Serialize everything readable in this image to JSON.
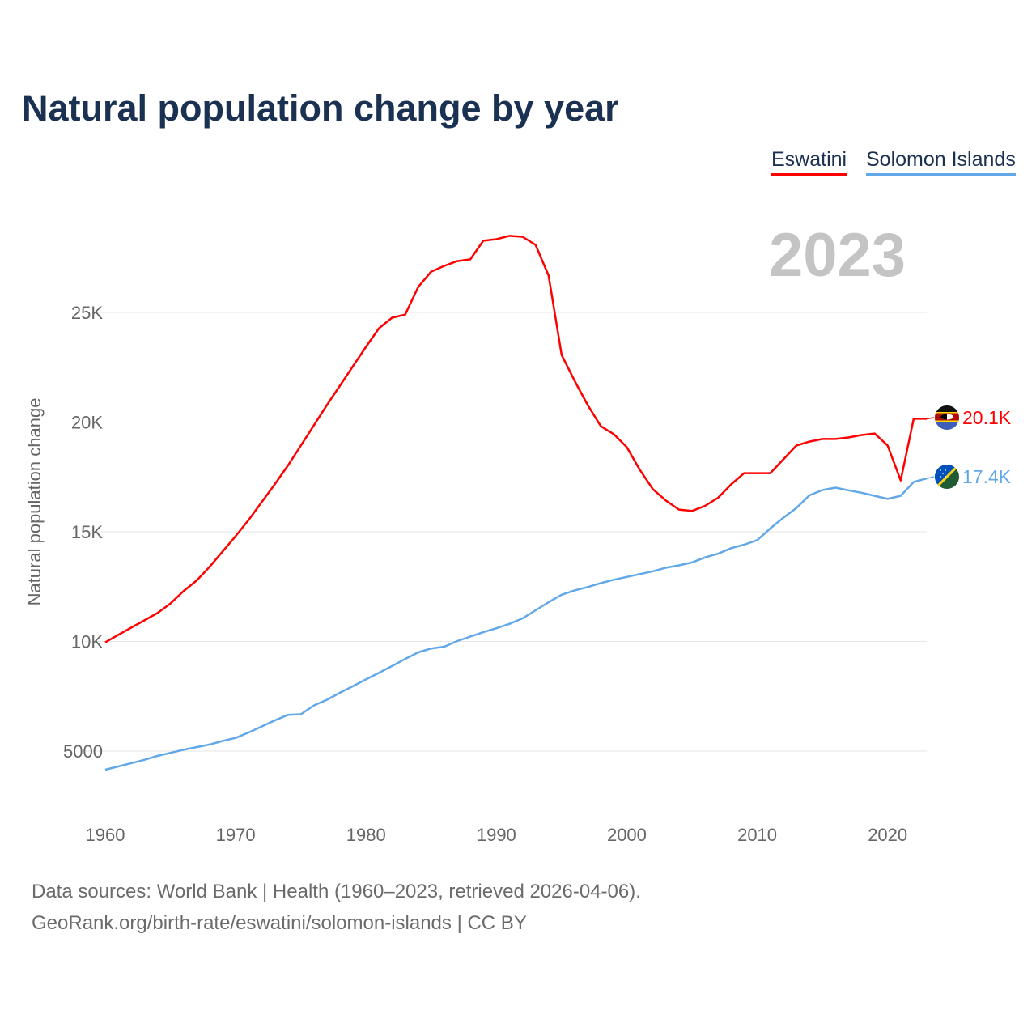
{
  "chart_data": {
    "type": "line",
    "title": "Natural population change by year",
    "ylabel": "Natural population change",
    "xlabel": "",
    "highlight_year": "2023",
    "xlim": [
      1960,
      2023
    ],
    "ylim": [
      3500,
      30000
    ],
    "x_ticks": [
      1960,
      1970,
      1980,
      1990,
      2000,
      2010,
      2020
    ],
    "x_tick_labels": [
      "1960",
      "1970",
      "1980",
      "1990",
      "2000",
      "2010",
      "2020"
    ],
    "y_ticks": [
      5000,
      10000,
      15000,
      20000,
      25000
    ],
    "y_tick_labels": [
      "5000",
      "10K",
      "15K",
      "20K",
      "25K"
    ],
    "grid": true,
    "legend_position": "top-right",
    "x": [
      1960,
      1961,
      1962,
      1963,
      1964,
      1965,
      1966,
      1967,
      1968,
      1969,
      1970,
      1971,
      1972,
      1973,
      1974,
      1975,
      1976,
      1977,
      1978,
      1979,
      1980,
      1981,
      1982,
      1983,
      1984,
      1985,
      1986,
      1987,
      1988,
      1989,
      1990,
      1991,
      1992,
      1993,
      1994,
      1995,
      1996,
      1997,
      1998,
      1999,
      2000,
      2001,
      2002,
      2003,
      2004,
      2005,
      2006,
      2007,
      2008,
      2009,
      2010,
      2011,
      2012,
      2013,
      2014,
      2015,
      2016,
      2017,
      2018,
      2019,
      2020,
      2021,
      2022,
      2023
    ],
    "series": [
      {
        "name": "Eswatini",
        "color": "#ff0000",
        "end_label": "20.1K",
        "flag": "eswatini-flag",
        "values": [
          9960,
          10300,
          10630,
          10960,
          11290,
          11730,
          12290,
          12770,
          13400,
          14100,
          14800,
          15540,
          16350,
          17160,
          18010,
          18930,
          19850,
          20780,
          21660,
          22550,
          23430,
          24280,
          24760,
          24900,
          26160,
          26860,
          27120,
          27340,
          27420,
          28270,
          28340,
          28490,
          28450,
          28080,
          26680,
          23060,
          21880,
          20780,
          19820,
          19450,
          18860,
          17820,
          16940,
          16420,
          16010,
          15950,
          16180,
          16550,
          17160,
          17670,
          17670,
          17670,
          18300,
          18930,
          19110,
          19230,
          19230,
          19300,
          19410,
          19480,
          18930,
          17340,
          20150,
          20150
        ]
      },
      {
        "name": "Solomon Islands",
        "color": "#62a8e8",
        "end_label": "17.4K",
        "flag": "solomon-islands-flag",
        "values": [
          4150,
          4300,
          4450,
          4600,
          4780,
          4920,
          5060,
          5180,
          5300,
          5460,
          5600,
          5850,
          6120,
          6400,
          6650,
          6680,
          7080,
          7340,
          7660,
          7960,
          8270,
          8570,
          8880,
          9200,
          9500,
          9680,
          9760,
          10020,
          10220,
          10420,
          10600,
          10800,
          11050,
          11420,
          11790,
          12130,
          12330,
          12480,
          12660,
          12810,
          12940,
          13070,
          13200,
          13360,
          13470,
          13600,
          13830,
          14000,
          14250,
          14410,
          14620,
          15150,
          15640,
          16080,
          16660,
          16900,
          17010,
          16890,
          16780,
          16640,
          16500,
          16640,
          17270,
          17430
        ]
      }
    ]
  },
  "footer": {
    "line1": "Data sources: World Bank | Health (1960–2023, retrieved 2026-04-06).",
    "line2": "GeoRank.org/birth-rate/eswatini/solomon-islands | CC BY"
  }
}
